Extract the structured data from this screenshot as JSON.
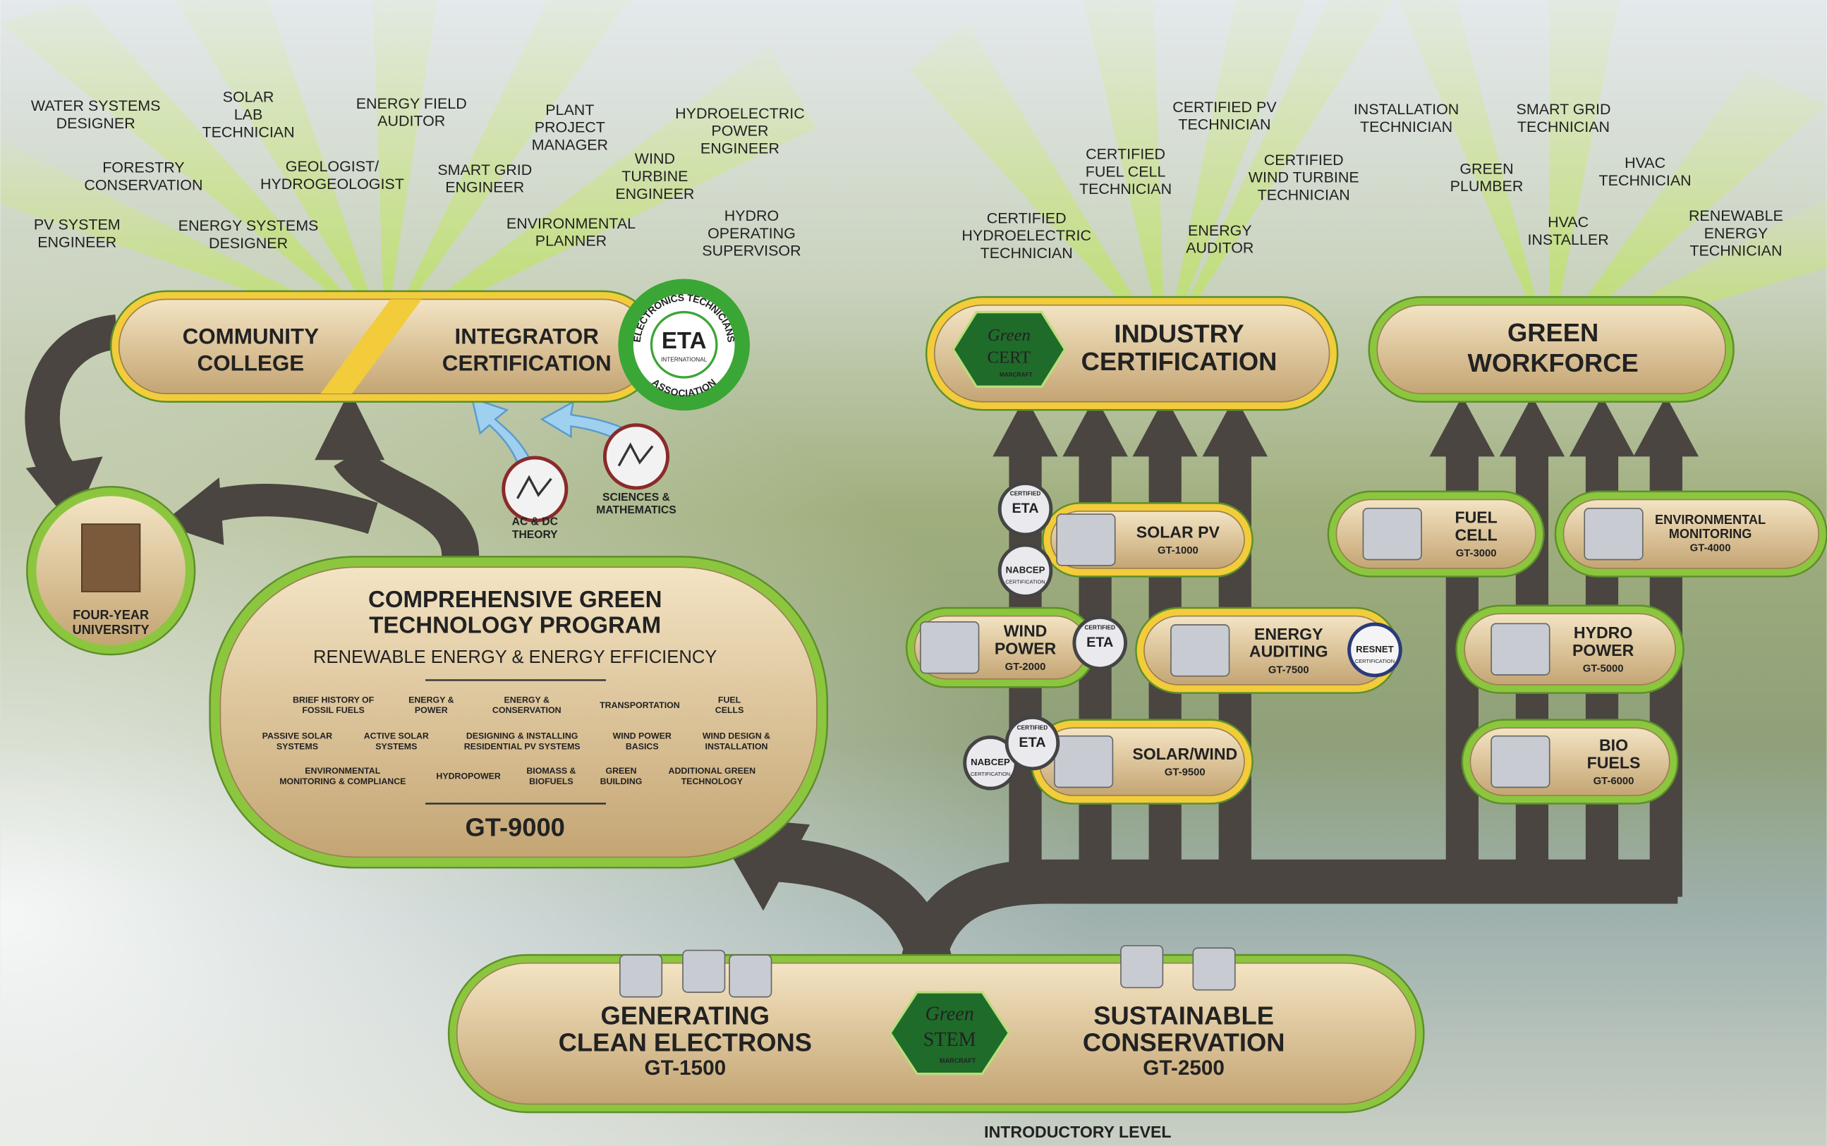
{
  "careers_academic": [
    {
      "lines": [
        "WATER SYSTEMS",
        "DESIGNER"
      ]
    },
    {
      "lines": [
        "SOLAR",
        "LAB",
        "TECHNICIAN"
      ]
    },
    {
      "lines": [
        "ENERGY FIELD",
        "AUDITOR"
      ]
    },
    {
      "lines": [
        "PLANT",
        "PROJECT",
        "MANAGER"
      ]
    },
    {
      "lines": [
        "HYDROELECTRIC",
        "POWER",
        "ENGINEER"
      ]
    },
    {
      "lines": [
        "FORESTRY",
        "CONSERVATION"
      ]
    },
    {
      "lines": [
        "GEOLOGIST/",
        "HYDROGEOLOGIST"
      ]
    },
    {
      "lines": [
        "SMART GRID",
        "ENGINEER"
      ]
    },
    {
      "lines": [
        "WIND",
        "TURBINE",
        "ENGINEER"
      ]
    },
    {
      "lines": [
        "PV SYSTEM",
        "ENGINEER"
      ]
    },
    {
      "lines": [
        "ENERGY SYSTEMS",
        "DESIGNER"
      ]
    },
    {
      "lines": [
        "ENVIRONMENTAL",
        "PLANNER"
      ]
    },
    {
      "lines": [
        "HYDRO",
        "OPERATING",
        "SUPERVISOR"
      ]
    }
  ],
  "careers_industry": [
    {
      "lines": [
        "CERTIFIED PV",
        "TECHNICIAN"
      ]
    },
    {
      "lines": [
        "INSTALLATION",
        "TECHNICIAN"
      ]
    },
    {
      "lines": [
        "SMART GRID",
        "TECHNICIAN"
      ]
    },
    {
      "lines": [
        "CERTIFIED",
        "FUEL CELL",
        "TECHNICIAN"
      ]
    },
    {
      "lines": [
        "CERTIFIED",
        "WIND TURBINE",
        "TECHNICIAN"
      ]
    },
    {
      "lines": [
        "GREEN",
        "PLUMBER"
      ]
    },
    {
      "lines": [
        "HVAC",
        "TECHNICIAN"
      ]
    },
    {
      "lines": [
        "CERTIFIED",
        "HYDROELECTRIC",
        "TECHNICIAN"
      ]
    },
    {
      "lines": [
        "ENERGY",
        "AUDITOR"
      ]
    },
    {
      "lines": [
        "HVAC",
        "INSTALLER"
      ]
    },
    {
      "lines": [
        "RENEWABLE",
        "ENERGY",
        "TECHNICIAN"
      ]
    }
  ],
  "college_pathway": {
    "community_college": [
      "COMMUNITY",
      "COLLEGE"
    ],
    "integrator": [
      "INTEGRATOR",
      "CERTIFICATION"
    ],
    "eta_badge": {
      "ring_top": "ELECTRONICS TECHNICIANS",
      "center": "ETA",
      "sub": "INTERNATIONAL",
      "ring_bottom": "ASSOCIATION"
    },
    "prerequisites": [
      {
        "lines": [
          "AC & DC",
          "THEORY"
        ]
      },
      {
        "lines": [
          "SCIENCES &",
          "MATHEMATICS"
        ]
      }
    ],
    "university": [
      "FOUR-YEAR",
      "UNIVERSITY"
    ]
  },
  "program": {
    "title": [
      "COMPREHENSIVE GREEN",
      "TECHNOLOGY PROGRAM"
    ],
    "subtitle": "RENEWABLE ENERGY & ENERGY EFFICIENCY",
    "topics": [
      [
        [
          "BRIEF HISTORY OF",
          "FOSSIL FUELS"
        ],
        [
          "ENERGY &",
          "POWER"
        ],
        [
          "ENERGY &",
          "CONSERVATION"
        ],
        [
          "TRANSPORTATION"
        ],
        [
          "FUEL",
          "CELLS"
        ]
      ],
      [
        [
          "PASSIVE SOLAR",
          "SYSTEMS"
        ],
        [
          "ACTIVE SOLAR",
          "SYSTEMS"
        ],
        [
          "DESIGNING & INSTALLING",
          "RESIDENTIAL PV SYSTEMS"
        ],
        [
          "WIND POWER",
          "BASICS"
        ],
        [
          "WIND DESIGN &",
          "INSTALLATION"
        ]
      ],
      [
        [
          "ENVIRONMENTAL",
          "MONITORING & COMPLIANCE"
        ],
        [
          "HYDROPOWER"
        ],
        [
          "BIOMASS &",
          "BIOFUELS"
        ],
        [
          "GREEN",
          "BUILDING"
        ],
        [
          "ADDITIONAL GREEN",
          "TECHNOLOGY"
        ]
      ]
    ],
    "code": "GT-9000"
  },
  "industry_certification": {
    "logo": {
      "green": "Green",
      "cert": "CERT",
      "maker": "MARCRAFT"
    },
    "title": [
      "INDUSTRY",
      "CERTIFICATION"
    ]
  },
  "green_workforce": {
    "title": [
      "GREEN",
      "WORKFORCE"
    ]
  },
  "courses": [
    {
      "name": [
        "SOLAR PV"
      ],
      "code": "GT-1000",
      "badges": [
        {
          "top": "CERTIFIED",
          "center": "ETA"
        },
        {
          "center": "NABCEP",
          "bottom": "CERTIFICATION"
        }
      ]
    },
    {
      "name": [
        "WIND",
        "POWER"
      ],
      "code": "GT-2000",
      "badges": [
        {
          "top": "CERTIFIED",
          "center": "ETA"
        }
      ]
    },
    {
      "name": [
        "ENERGY",
        "AUDITING"
      ],
      "code": "GT-7500",
      "badges": [
        {
          "center": "RESNET",
          "bottom": "CERTIFICATION"
        }
      ]
    },
    {
      "name": [
        "SOLAR/WIND"
      ],
      "code": "GT-9500",
      "badges": [
        {
          "center": "NABCEP",
          "bottom": "CERTIFICATION"
        },
        {
          "top": "CERTIFIED",
          "center": "ETA"
        }
      ]
    },
    {
      "name": [
        "FUEL",
        "CELL"
      ],
      "code": "GT-3000",
      "badges": []
    },
    {
      "name": [
        "ENVIRONMENTAL",
        "MONITORING"
      ],
      "code": "GT-4000",
      "badges": []
    },
    {
      "name": [
        "HYDRO",
        "POWER"
      ],
      "code": "GT-5000",
      "badges": []
    },
    {
      "name": [
        "BIO",
        "FUELS"
      ],
      "code": "GT-6000",
      "badges": []
    }
  ],
  "introductory": {
    "left": {
      "lines": [
        "GENERATING",
        "CLEAN ELECTRONS"
      ],
      "code": "GT-1500"
    },
    "logo": {
      "green": "Green",
      "stem": "STEM",
      "maker": "MARCRAFT"
    },
    "right": {
      "lines": [
        "SUSTAINABLE",
        "CONSERVATION"
      ],
      "code": "GT-2500"
    },
    "level": "INTRODUCTORY LEVEL"
  }
}
